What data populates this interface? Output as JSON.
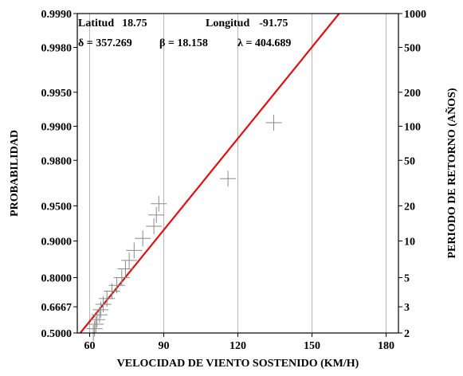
{
  "chart_data": {
    "type": "scatter",
    "xlabel": "VELOCIDAD DE VIENTO SOSTENIDO (KM/H)",
    "ylabel_left": "PROBABILIDAD",
    "ylabel_right": "PERIODO DE RETORNO (AÑOS)",
    "xlim": [
      55,
      185
    ],
    "x_ticks": [
      60,
      90,
      120,
      150,
      180
    ],
    "x_tick_labels": [
      "60",
      "90",
      "120",
      "150",
      "180"
    ],
    "y_ticks_probability": [
      0.5,
      0.6667,
      0.8,
      0.9,
      0.95,
      0.98,
      0.99,
      0.995,
      0.998,
      0.999
    ],
    "y_tick_labels_probability": [
      "0.5000",
      "0.6667",
      "0.8000",
      "0.9000",
      "0.9500",
      "0.9800",
      "0.9900",
      "0.9950",
      "0.9980",
      "0.9990"
    ],
    "y_ticks_return_period": [
      2,
      3,
      5,
      10,
      20,
      50,
      100,
      200,
      500,
      1000
    ],
    "y_tick_labels_return_period": [
      "2",
      "3",
      "5",
      "10",
      "20",
      "50",
      "100",
      "200",
      "500",
      "1000"
    ],
    "y_scale": "gumbel reduced variate",
    "grid": true,
    "info": {
      "row1": [
        {
          "label": "Latitud",
          "value": "18.75"
        },
        {
          "label": "Longitud",
          "value": "-91.75"
        }
      ],
      "row2": [
        {
          "label": "δ",
          "value": "357.269"
        },
        {
          "label": "β",
          "value": "18.158"
        },
        {
          "label": "λ",
          "value": "404.689"
        }
      ]
    },
    "fit_line": {
      "color": "#dd1111",
      "x": [
        56.2,
        161.0
      ],
      "probability": [
        0.5,
        0.999
      ]
    },
    "observations": {
      "marker": "plus",
      "color": "#8a8a8a",
      "points": [
        {
          "x": 61.5,
          "probability": 0.5
        },
        {
          "x": 62.0,
          "probability": 0.53
        },
        {
          "x": 62.5,
          "probability": 0.56
        },
        {
          "x": 63.0,
          "probability": 0.59
        },
        {
          "x": 64.0,
          "probability": 0.62
        },
        {
          "x": 64.5,
          "probability": 0.65
        },
        {
          "x": 65.5,
          "probability": 0.68
        },
        {
          "x": 67.0,
          "probability": 0.71
        },
        {
          "x": 69.0,
          "probability": 0.745
        },
        {
          "x": 71.0,
          "probability": 0.77
        },
        {
          "x": 73.0,
          "probability": 0.8
        },
        {
          "x": 74.5,
          "probability": 0.83
        },
        {
          "x": 76.0,
          "probability": 0.855
        },
        {
          "x": 78.0,
          "probability": 0.88
        },
        {
          "x": 81.5,
          "probability": 0.905
        },
        {
          "x": 86.0,
          "probability": 0.925
        },
        {
          "x": 87.0,
          "probability": 0.94
        },
        {
          "x": 88.0,
          "probability": 0.952
        },
        {
          "x": 116.0,
          "probability": 0.971
        },
        {
          "x": 134.5,
          "probability": 0.9907
        }
      ]
    }
  }
}
